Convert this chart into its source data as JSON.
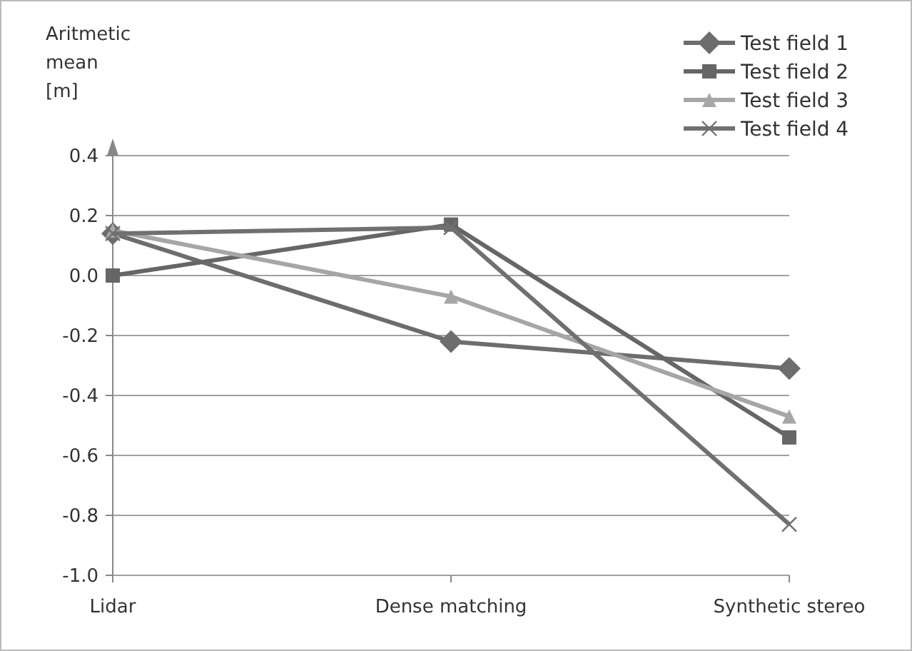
{
  "chart_data": {
    "type": "line",
    "ylabel": "Aritmetic\nmean\n[m]",
    "categories": [
      "Lidar",
      "Dense matching",
      "Synthetic stereo"
    ],
    "series": [
      {
        "name": "Test field 1",
        "color": "#6d6d6d",
        "marker": "diamond",
        "values": [
          0.14,
          -0.22,
          -0.31
        ]
      },
      {
        "name": "Test field 2",
        "color": "#666666",
        "marker": "square",
        "values": [
          0.0,
          0.17,
          -0.54
        ]
      },
      {
        "name": "Test field 3",
        "color": "#a6a6a6",
        "marker": "triangle",
        "values": [
          0.15,
          -0.07,
          -0.47
        ]
      },
      {
        "name": "Test field 4",
        "color": "#707070",
        "marker": "cross",
        "values": [
          0.14,
          0.16,
          -0.83
        ]
      }
    ],
    "ylim": [
      -1.0,
      0.4
    ],
    "yticks": [
      {
        "value": -1.0,
        "label": "-1.0"
      },
      {
        "value": -0.8,
        "label": "-0.8"
      },
      {
        "value": -0.6,
        "label": "-0.6"
      },
      {
        "value": -0.4,
        "label": "-0.4"
      },
      {
        "value": -0.2,
        "label": "-0.2"
      },
      {
        "value": 0,
        "label": "0.0"
      },
      {
        "value": 0.2,
        "label": "0.2"
      },
      {
        "value": 0.4,
        "label": "0.4"
      }
    ],
    "grid": "y",
    "legend": "top right"
  }
}
